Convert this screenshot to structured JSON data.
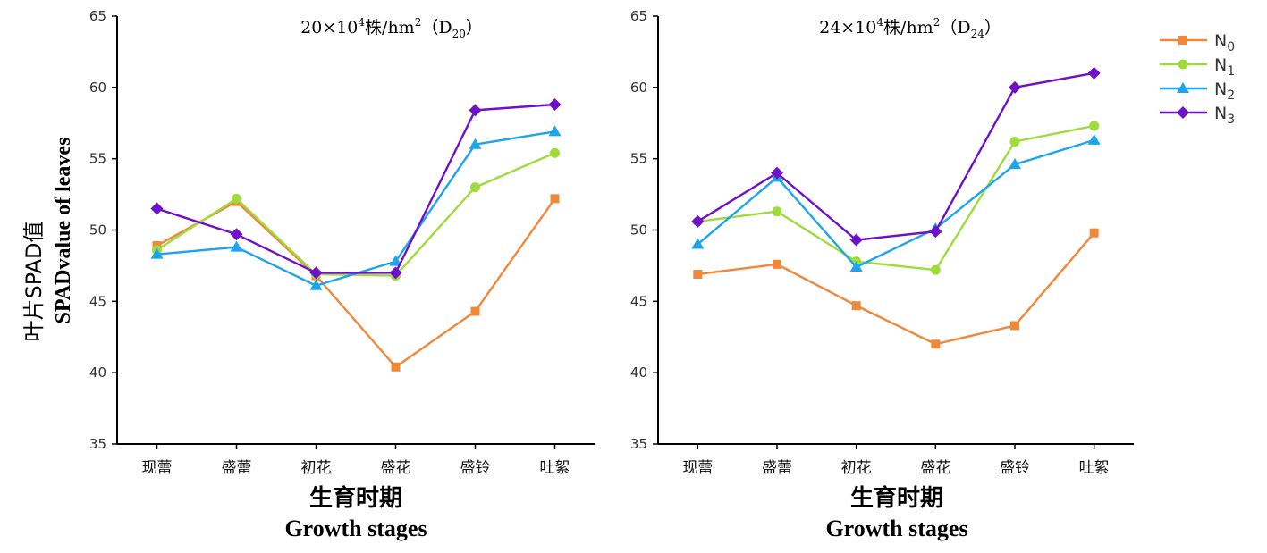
{
  "ylabel_cn": "叶片SPAD值",
  "ylabel_en": "SPADvalue of leaves",
  "xlabel_cn": "生育时期",
  "xlabel_en": "Growth stages",
  "legend": [
    {
      "main": "N",
      "sub": "0"
    },
    {
      "main": "N",
      "sub": "1"
    },
    {
      "main": "N",
      "sub": "2"
    },
    {
      "main": "N",
      "sub": "3"
    }
  ],
  "colors": {
    "N0": "#F0883A",
    "N1": "#9EDC3C",
    "N2": "#1EA4EC",
    "N3": "#7010C8",
    "axis": "#000000"
  },
  "chart_data": [
    {
      "type": "line",
      "title": {
        "density": "20",
        "unit": "×10",
        "sup": "4",
        "rest": "株/hm",
        "sup2": "2",
        "code": "（D",
        "sub": "20",
        "close": "）"
      },
      "categories": [
        "现蕾",
        "盛蕾",
        "初花",
        "盛花",
        "盛铃",
        "吐絮"
      ],
      "ylim": [
        35,
        65
      ],
      "yticks": [
        35,
        40,
        45,
        50,
        55,
        60,
        65
      ],
      "series": [
        {
          "name": "N0",
          "marker": "square",
          "values": [
            48.9,
            52.0,
            46.8,
            40.4,
            44.3,
            52.2
          ]
        },
        {
          "name": "N1",
          "marker": "circle",
          "values": [
            48.6,
            52.2,
            46.9,
            46.8,
            53.0,
            55.4
          ]
        },
        {
          "name": "N2",
          "marker": "triangle",
          "values": [
            48.3,
            48.8,
            46.1,
            47.8,
            56.0,
            56.9
          ]
        },
        {
          "name": "N3",
          "marker": "diamond",
          "values": [
            51.5,
            49.7,
            47.0,
            47.0,
            58.4,
            58.8
          ]
        }
      ]
    },
    {
      "type": "line",
      "title": {
        "density": "24",
        "unit": "×10",
        "sup": "4",
        "rest": "株/hm",
        "sup2": "2",
        "code": "（D",
        "sub": "24",
        "close": "）"
      },
      "categories": [
        "现蕾",
        "盛蕾",
        "初花",
        "盛花",
        "盛铃",
        "吐絮"
      ],
      "ylim": [
        35,
        65
      ],
      "yticks": [
        35,
        40,
        45,
        50,
        55,
        60,
        65
      ],
      "series": [
        {
          "name": "N0",
          "marker": "square",
          "values": [
            46.9,
            47.6,
            44.7,
            42.0,
            43.3,
            49.8
          ]
        },
        {
          "name": "N1",
          "marker": "circle",
          "values": [
            50.6,
            51.3,
            47.8,
            47.2,
            56.2,
            57.3
          ]
        },
        {
          "name": "N2",
          "marker": "triangle",
          "values": [
            49.0,
            53.7,
            47.4,
            50.1,
            54.6,
            56.3
          ]
        },
        {
          "name": "N3",
          "marker": "diamond",
          "values": [
            50.6,
            54.0,
            49.3,
            49.9,
            60.0,
            61.0
          ]
        }
      ]
    }
  ]
}
